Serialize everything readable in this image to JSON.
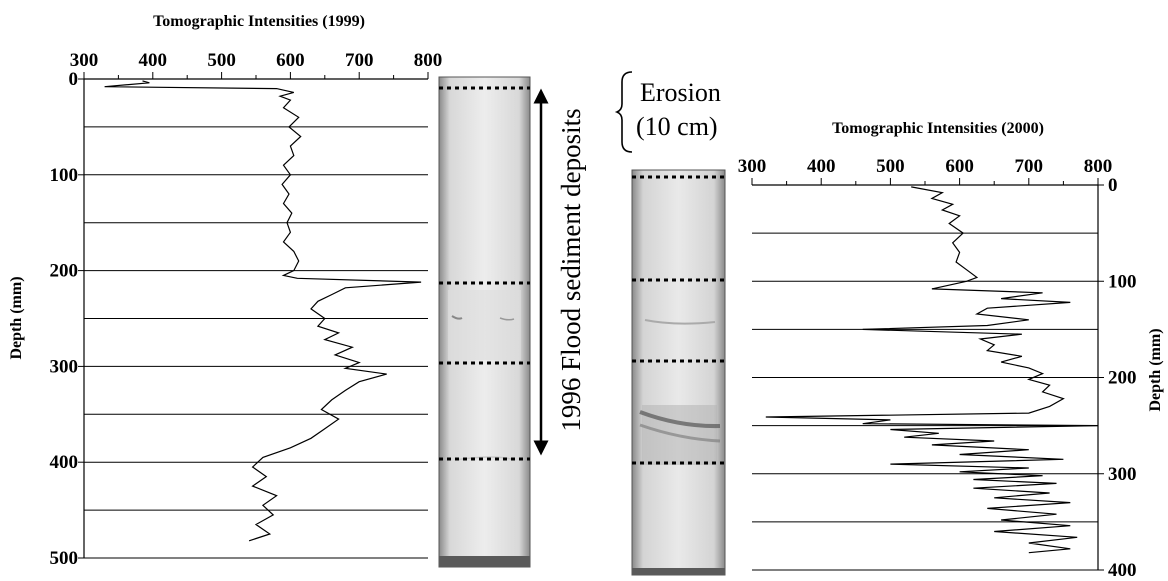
{
  "annotations": {
    "flood": "1996 Flood sediment deposits",
    "erosion_line1": "Erosion",
    "erosion_line2": "(10 cm)"
  },
  "chart_data": [
    {
      "type": "line",
      "title": "Tomographic Intensities (1999)",
      "ylabel": "Depth (mm)",
      "xlim": [
        300,
        800
      ],
      "ylim": [
        0,
        500
      ],
      "y_inverted": true,
      "x_axis_position": "top",
      "y_axis_position": "left",
      "x_ticks": [
        "300",
        "400",
        "500",
        "600",
        "700",
        "800"
      ],
      "y_ticks": [
        "0",
        "100",
        "200",
        "300",
        "400",
        "500"
      ],
      "gridlines_y": [
        50,
        100,
        150,
        200,
        250,
        300,
        350,
        400,
        450,
        500
      ],
      "series": [
        {
          "color": "#000000",
          "points": [
            [
              385,
              2
            ],
            [
              395,
              4
            ],
            [
              330,
              8
            ],
            [
              580,
              10
            ],
            [
              605,
              14
            ],
            [
              585,
              18
            ],
            [
              600,
              22
            ],
            [
              590,
              30
            ],
            [
              612,
              40
            ],
            [
              598,
              50
            ],
            [
              615,
              60
            ],
            [
              600,
              70
            ],
            [
              605,
              80
            ],
            [
              590,
              90
            ],
            [
              600,
              100
            ],
            [
              588,
              110
            ],
            [
              598,
              120
            ],
            [
              590,
              130
            ],
            [
              602,
              140
            ],
            [
              595,
              150
            ],
            [
              600,
              160
            ],
            [
              590,
              170
            ],
            [
              605,
              180
            ],
            [
              612,
              190
            ],
            [
              605,
              200
            ],
            [
              590,
              205
            ],
            [
              610,
              208
            ],
            [
              790,
              212
            ],
            [
              680,
              218
            ],
            [
              660,
              225
            ],
            [
              640,
              232
            ],
            [
              630,
              240
            ],
            [
              650,
              250
            ],
            [
              640,
              258
            ],
            [
              670,
              265
            ],
            [
              650,
              272
            ],
            [
              690,
              280
            ],
            [
              665,
              288
            ],
            [
              700,
              296
            ],
            [
              680,
              302
            ],
            [
              740,
              308
            ],
            [
              700,
              316
            ],
            [
              680,
              325
            ],
            [
              660,
              335
            ],
            [
              645,
              345
            ],
            [
              670,
              355
            ],
            [
              650,
              365
            ],
            [
              630,
              375
            ],
            [
              600,
              385
            ],
            [
              560,
              395
            ],
            [
              545,
              405
            ],
            [
              565,
              415
            ],
            [
              545,
              425
            ],
            [
              580,
              435
            ],
            [
              560,
              445
            ],
            [
              575,
              455
            ],
            [
              550,
              465
            ],
            [
              570,
              475
            ],
            [
              540,
              482
            ]
          ]
        }
      ]
    },
    {
      "type": "line",
      "title": "Tomographic Intensities (2000)",
      "ylabel": "Depth (mm)",
      "xlim": [
        300,
        800
      ],
      "ylim": [
        0,
        400
      ],
      "y_inverted": true,
      "x_axis_position": "top",
      "y_axis_position": "right",
      "x_ticks": [
        "300",
        "400",
        "500",
        "600",
        "700",
        "800"
      ],
      "y_ticks": [
        "0",
        "100",
        "200",
        "300",
        "400"
      ],
      "gridlines_y": [
        50,
        100,
        150,
        200,
        250,
        300,
        350,
        400
      ],
      "series": [
        {
          "color": "#000000",
          "points": [
            [
              530,
              2
            ],
            [
              575,
              8
            ],
            [
              560,
              14
            ],
            [
              590,
              20
            ],
            [
              575,
              26
            ],
            [
              600,
              32
            ],
            [
              585,
              40
            ],
            [
              605,
              50
            ],
            [
              590,
              60
            ],
            [
              600,
              70
            ],
            [
              595,
              80
            ],
            [
              610,
              88
            ],
            [
              625,
              96
            ],
            [
              610,
              100
            ],
            [
              560,
              108
            ],
            [
              720,
              112
            ],
            [
              660,
              118
            ],
            [
              760,
              122
            ],
            [
              640,
              128
            ],
            [
              625,
              134
            ],
            [
              700,
              140
            ],
            [
              640,
              146
            ],
            [
              460,
              150
            ],
            [
              690,
              155
            ],
            [
              630,
              160
            ],
            [
              650,
              166
            ],
            [
              640,
              172
            ],
            [
              690,
              178
            ],
            [
              660,
              184
            ],
            [
              700,
              190
            ],
            [
              720,
              196
            ],
            [
              700,
              202
            ],
            [
              730,
              208
            ],
            [
              720,
              215
            ],
            [
              750,
              222
            ],
            [
              730,
              230
            ],
            [
              700,
              237
            ],
            [
              320,
              241
            ],
            [
              500,
              244
            ],
            [
              460,
              248
            ],
            [
              800,
              250
            ],
            [
              500,
              254
            ],
            [
              570,
              258
            ],
            [
              520,
              262
            ],
            [
              650,
              266
            ],
            [
              560,
              270
            ],
            [
              700,
              275
            ],
            [
              600,
              280
            ],
            [
              750,
              285
            ],
            [
              500,
              290
            ],
            [
              700,
              294
            ],
            [
              600,
              298
            ],
            [
              720,
              302
            ],
            [
              620,
              306
            ],
            [
              740,
              310
            ],
            [
              620,
              315
            ],
            [
              730,
              320
            ],
            [
              650,
              325
            ],
            [
              760,
              330
            ],
            [
              640,
              336
            ],
            [
              740,
              342
            ],
            [
              660,
              348
            ],
            [
              760,
              354
            ],
            [
              650,
              360
            ],
            [
              770,
              366
            ],
            [
              700,
              372
            ],
            [
              760,
              378
            ],
            [
              700,
              382
            ]
          ]
        }
      ]
    }
  ]
}
